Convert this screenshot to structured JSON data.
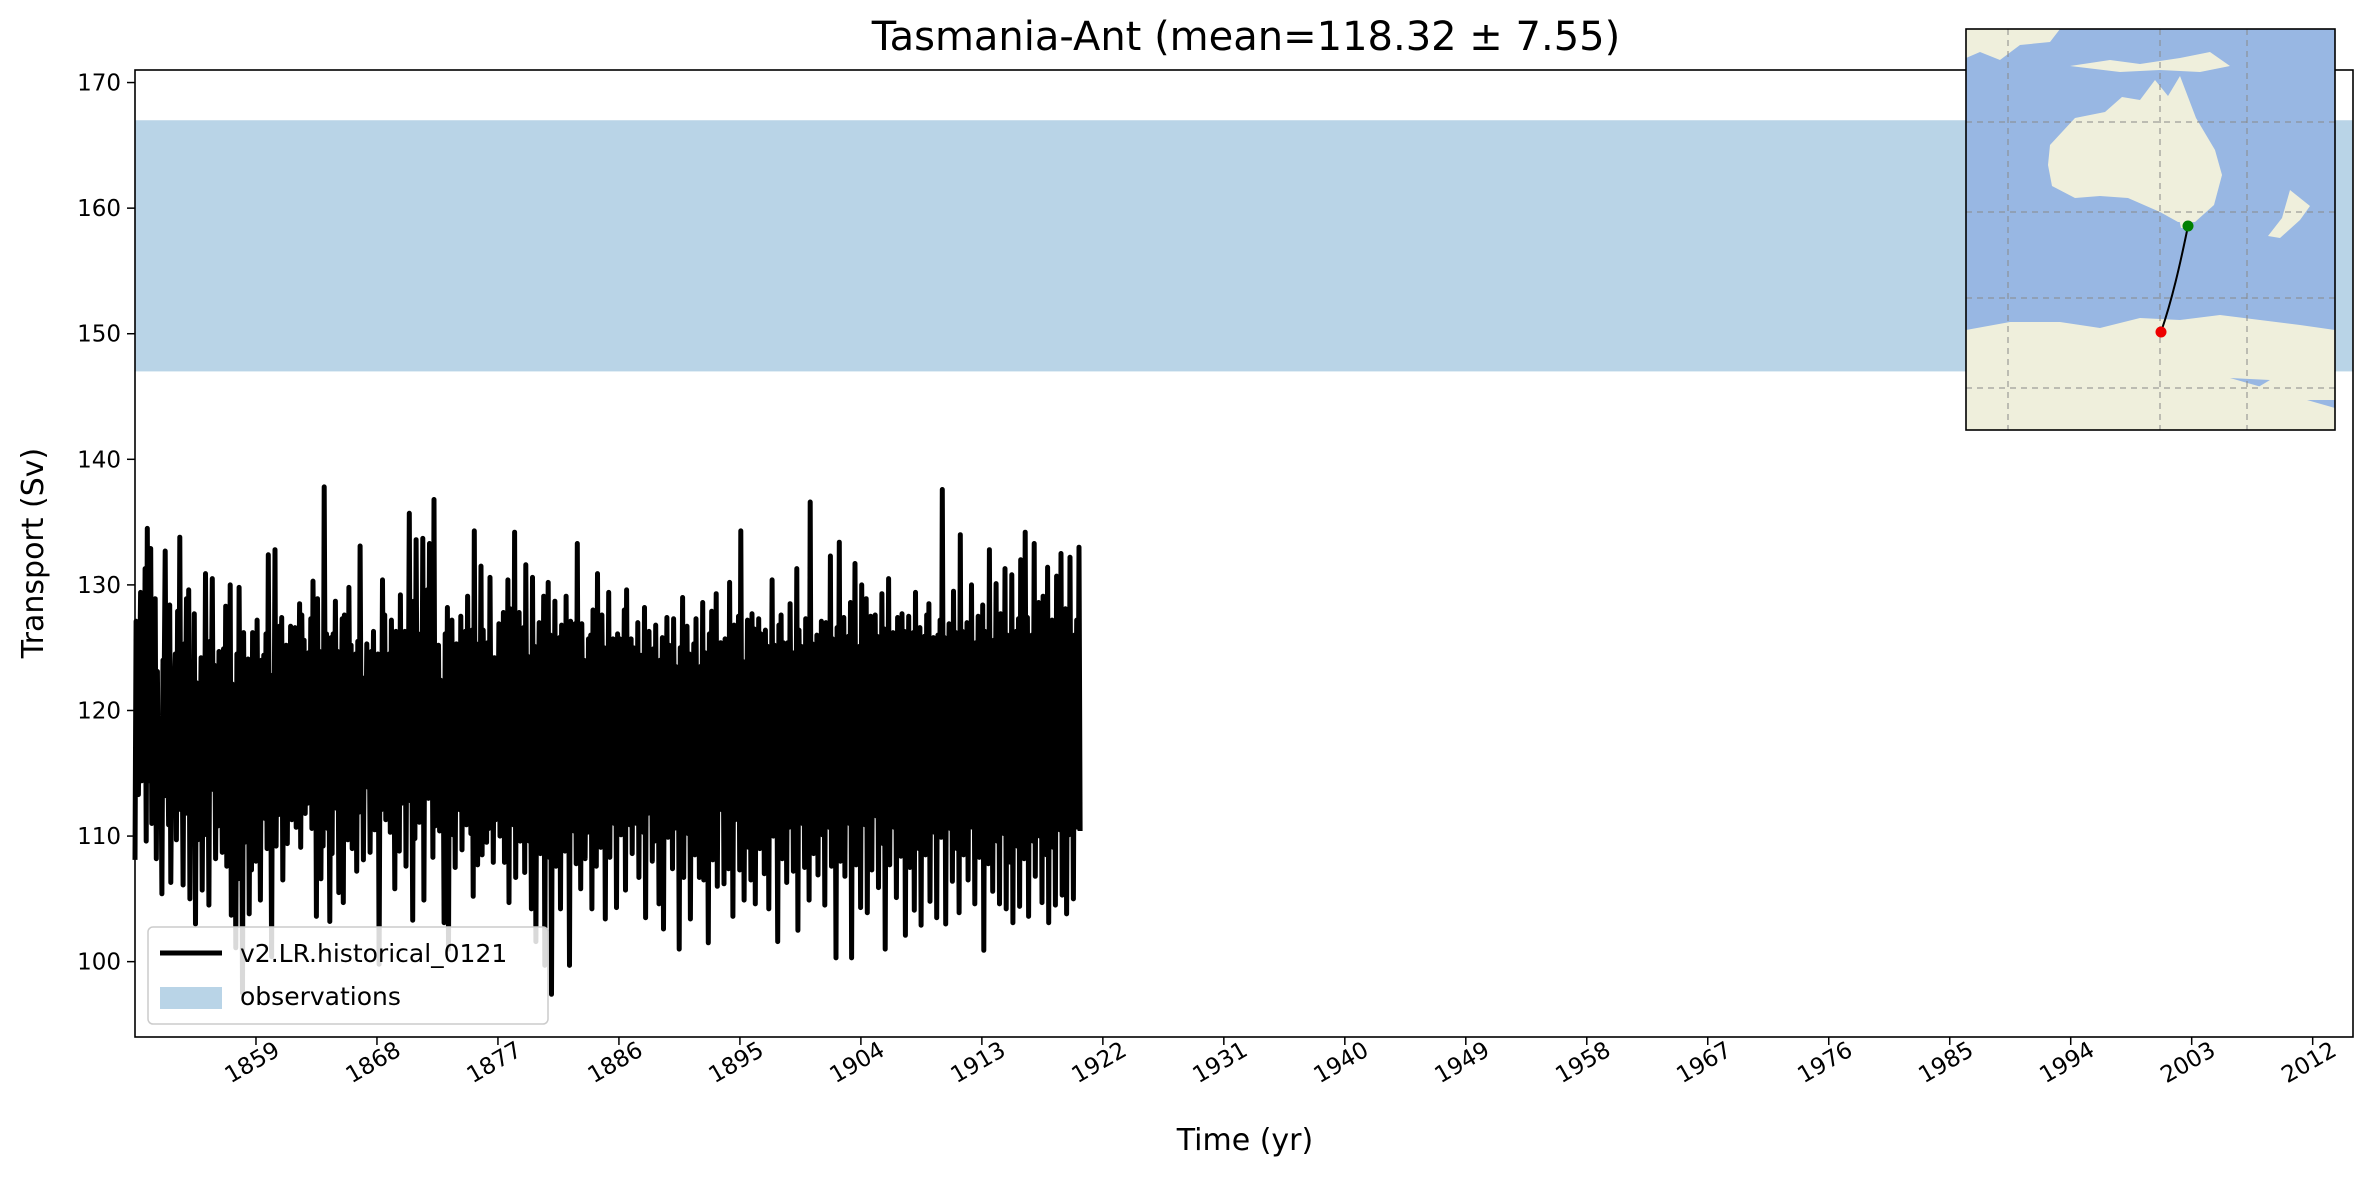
{
  "chart_data": {
    "type": "line",
    "title": "Tasmania-Ant (mean=118.32 ± 7.55)",
    "xlabel": "Time (yr)",
    "ylabel": "Transport (Sv)",
    "xlim": [
      1850,
      2015
    ],
    "ylim": [
      94,
      171
    ],
    "x_ticks": [
      "1859",
      "1868",
      "1877",
      "1886",
      "1895",
      "1904",
      "1913",
      "1922",
      "1931",
      "1940",
      "1949",
      "1958",
      "1967",
      "1976",
      "1985",
      "1994",
      "2003",
      "2012"
    ],
    "y_ticks": [
      "100",
      "110",
      "120",
      "130",
      "140",
      "150",
      "160",
      "170"
    ],
    "grid": false,
    "legend_position": "lower-left",
    "observation_band": {
      "name": "observations",
      "y_min": 147,
      "y_max": 167,
      "color": "#b9d4e7"
    },
    "series": [
      {
        "name": "v2.LR.historical_0121",
        "color": "#000000",
        "x_start": 1850,
        "x_step": 0.0833,
        "values": [
          108.1,
          127.1,
          124.9,
          113.3,
          121.8,
          129.4,
          114.4,
          119.5,
          116.4,
          131.3,
          109.6,
          134.5,
          114.4,
          122.0,
          132.9,
          111.0,
          121.1,
          117.8,
          128.9,
          108.2,
          123.1,
          112.0,
          116.4,
          119.1,
          105.4,
          124.0,
          121.4,
          132.7,
          113.2,
          120.6,
          110.9,
          128.4,
          106.3,
          119.7,
          115.1,
          121.3,
          124.5,
          109.7,
          127.9,
          114.4,
          133.8,
          112.1,
          118.8,
          106.1,
          125.3,
          119.4,
          128.9,
          111.8,
          129.6,
          105.0,
          120.7,
          116.1,
          115.1,
          127.7,
          103.0,
          122.2,
          109.7,
          121.6,
          114.8,
          124.2,
          105.7,
          120.6,
          112.0,
          130.9,
          110.1,
          121.1,
          104.5,
          125.5,
          117.2,
          130.5,
          113.7,
          123.6,
          108.2,
          122.1,
          110.8,
          124.7,
          118.3,
          121.3,
          108.7,
          124.9,
          111.9,
          128.3,
          107.6,
          121.1,
          112.4,
          130.0,
          103.7,
          122.1,
          115.2,
          119.2,
          101.1,
          124.5,
          106.6,
          129.8,
          112.4,
          120.1,
          97.5,
          126.2,
          109.5,
          120.6,
          114.4,
          124.1,
          103.8,
          122.0,
          107.3,
          126.2,
          116.3,
          119.4,
          108.0,
          127.2,
          112.6,
          117.7,
          104.9,
          124.0,
          119.8,
          124.4,
          111.4,
          126.1,
          109.0,
          132.4,
          113.6,
          119.2,
          100.4,
          122.8,
          112.6,
          132.8,
          109.2,
          123.4,
          111.7,
          126.7,
          121.3,
          127.4,
          106.5,
          120.3,
          114.7,
          125.2,
          109.4,
          122.9,
          113.6,
          126.7,
          111.3,
          123.1,
          120.4,
          126.6,
          110.7,
          121.3,
          117.4,
          128.5,
          109.1,
          127.6,
          115.5,
          125.6,
          111.8,
          121.2,
          112.6,
          124.6,
          114.8,
          127.3,
          110.6,
          130.3,
          118.3,
          127.1,
          103.6,
          128.9,
          112.4,
          124.7,
          106.6,
          123.0,
          109.2,
          137.8,
          116.3,
          126.1,
          110.6,
          120.6,
          103.2,
          125.8,
          108.6,
          126.1,
          116.5,
          128.7,
          112.2,
          124.7,
          105.5,
          121.8,
          117.2,
          127.3,
          104.7,
          127.6,
          118.8,
          124.6,
          109.7,
          129.8,
          116.2,
          125.2,
          109.0,
          121.7,
          113.2,
          124.5,
          107.2,
          125.5,
          111.9,
          133.1,
          115.4,
          122.6,
          108.1,
          120.7,
          116.2,
          125.3,
          113.9,
          122.3,
          108.7,
          124.7,
          117.6,
          126.3,
          110.5,
          122.9,
          114.1,
          124.5,
          99.8,
          121.5,
          112.1,
          130.4,
          115.8,
          127.6,
          111.3,
          123.5,
          112.9,
          124.5,
          110.3,
          127.2,
          117.4,
          121.4,
          105.8,
          126.3,
          118.1,
          124.9,
          108.8,
          129.2,
          112.6,
          121.3,
          115.2,
          126.3,
          107.6,
          122.6,
          118.2,
          135.7,
          112.8,
          121.0,
          103.3,
          128.7,
          109.8,
          133.6,
          117.3,
          126.1,
          111.1,
          123.5,
          114.4,
          133.7,
          104.9,
          126.0,
          117.4,
          129.6,
          113.0,
          133.3,
          113.6,
          126.1,
          108.3,
          136.8,
          110.8,
          123.3,
          118.7,
          125.2,
          110.4,
          122.4,
          115.6,
          121.8,
          103.1,
          126.1,
          112.8,
          128.2,
          101.0,
          125.9,
          114.4,
          127.2,
          110.1,
          123.2,
          107.5,
          125.3,
          116.2,
          119.3,
          112.1,
          127.5,
          108.9,
          124.6,
          113.6,
          126.3,
          110.9,
          129.1,
          115.3,
          122.8,
          110.2,
          126.4,
          105.2,
          134.3,
          112.6,
          125.3,
          107.7,
          120.9,
          116.4,
          131.5,
          108.5,
          126.4,
          114.5,
          122.9,
          109.5,
          125.4,
          110.6,
          130.6,
          116.0,
          123.4,
          107.9,
          124.2,
          111.3,
          122.8,
          115.7,
          126.9,
          110.0,
          124.9,
          114.3,
          127.8,
          107.9,
          124.0,
          112.7,
          130.4,
          104.7,
          128.1,
          113.5,
          124.4,
          110.9,
          134.2,
          106.7,
          124.1,
          115.1,
          127.8,
          109.6,
          123.5,
          111.8,
          126.6,
          107.1,
          131.6,
          114.2,
          124.3,
          109.6,
          121.1,
          104.2,
          130.6,
          112.5,
          125.1,
          101.6,
          122.7,
          117.4,
          127.0,
          108.6,
          120.6,
          114.3,
          129.1,
          99.7,
          125.6,
          116.7,
          130.2,
          108.3,
          126.0,
          97.4,
          124.0,
          111.6,
          128.7,
          107.6,
          125.0,
          116.3,
          125.8,
          104.2,
          126.8,
          113.2,
          121.4,
          108.8,
          129.1,
          113.3,
          122.7,
          99.7,
          127.1,
          114.1,
          123.7,
          110.4,
          126.9,
          107.8,
          133.3,
          112.5,
          126.2,
          105.8,
          126.9,
          116.3,
          124.0,
          108.2,
          121.5,
          110.3,
          125.7,
          116.8,
          126.0,
          104.2,
          128.0,
          113.9,
          126.5,
          107.6,
          130.9,
          111.6,
          121.6,
          109.1,
          127.6,
          114.6,
          125.0,
          103.4,
          123.1,
          112.8,
          129.4,
          108.3,
          125.4,
          115.3,
          125.7,
          111.0,
          124.6,
          104.3,
          126.1,
          117.2,
          125.7,
          110.1,
          122.4,
          115.1,
          128.0,
          105.7,
          129.6,
          114.3,
          123.0,
          110.9,
          125.7,
          108.6,
          125.0,
          117.6,
          123.0,
          111.0,
          127.0,
          106.7,
          124.4,
          113.2,
          124.4,
          110.3,
          128.2,
          103.5,
          124.2,
          111.8,
          126.3,
          114.5,
          123.2,
          108.0,
          124.9,
          109.6,
          126.8,
          113.5,
          123.2,
          104.6,
          124.0,
          116.1,
          125.8,
          102.6,
          122.7,
          114.3,
          127.4,
          109.9,
          125.2,
          111.7,
          124.3,
          107.4,
          127.3,
          116.0,
          123.5,
          110.6,
          122.7,
          101.0,
          125.0,
          114.7,
          129.0,
          106.7,
          124.3,
          112.1,
          126.7,
          110.2,
          124.5,
          103.4,
          121.4,
          116.2,
          125.3,
          108.5,
          127.3,
          112.5,
          122.7,
          106.7,
          123.5,
          114.4,
          128.6,
          106.5,
          124.6,
          111.0,
          120.6,
          101.5,
          126.1,
          113.6,
          127.9,
          108.1,
          126.7,
          111.4,
          129.3,
          106.0,
          123.2,
          114.7,
          125.4,
          112.1,
          122.0,
          106.2,
          125.7,
          114.3,
          124.0,
          107.4,
          130.2,
          113.0,
          124.5,
          103.6,
          126.8,
          111.3,
          122.0,
          115.7,
          127.5,
          107.3,
          134.3,
          112.8,
          123.9,
          104.9,
          122.9,
          116.3,
          127.2,
          109.1,
          125.0,
          106.5,
          127.7,
          111.9,
          126.5,
          104.6,
          124.5,
          115.8,
          127.3,
          109.0,
          126.1,
          111.3,
          124.2,
          107.0,
          126.4,
          114.2,
          125.1,
          104.2,
          123.7,
          113.4,
          130.4,
          110.0,
          125.2,
          116.4,
          121.7,
          101.6,
          126.8,
          111.8,
          127.6,
          108.2,
          125.4,
          114.7,
          121.8,
          106.3,
          125.4,
          110.7,
          128.5,
          115.9,
          123.2,
          107.2,
          124.6,
          112.4,
          131.3,
          102.5,
          126.4,
          114.6,
          125.1,
          111.0,
          123.9,
          107.5,
          127.3,
          113.1,
          124.9,
          104.9,
          136.6,
          111.4,
          125.3,
          108.6,
          122.7,
          115.7,
          126.0,
          106.9,
          124.9,
          112.2,
          127.1,
          110.1,
          125.6,
          104.5,
          127.0,
          113.3,
          124.2,
          110.7,
          132.3,
          107.6,
          125.7,
          115.3,
          124.3,
          100.3,
          126.6,
          112.2,
          133.4,
          108.0,
          124.9,
          111.8,
          127.4,
          106.8,
          122.8,
          115.4,
          125.9,
          111.0,
          128.6,
          100.3,
          127.3,
          113.3,
          131.7,
          107.7,
          124.6,
          110.6,
          125.1,
          104.3,
          130.0,
          115.2,
          125.6,
          110.9,
          128.9,
          103.9,
          125.7,
          116.6,
          127.5,
          107.3,
          124.1,
          112.7,
          127.6,
          111.6,
          125.9,
          105.9,
          125.2,
          114.3,
          129.3,
          109.4,
          126.5,
          101.0,
          124.4,
          112.1,
          130.5,
          107.7,
          123.9,
          115.1,
          126.2,
          110.7,
          124.9,
          105.1,
          127.4,
          113.2,
          125.1,
          108.4,
          127.7,
          110.3,
          126.3,
          102.1,
          125.7,
          114.9,
          127.5,
          107.5,
          124.7,
          111.5,
          126.2,
          104.1,
          129.4,
          112.6,
          124.2,
          109.0,
          126.6,
          102.9,
          125.0,
          114.2,
          125.9,
          108.5,
          127.6,
          111.2,
          128.5,
          104.8,
          125.1,
          113.7,
          125.8,
          110.3,
          124.6,
          103.5,
          126.0,
          114.5,
          127.2,
          109.9,
          137.6,
          113.2,
          125.8,
          103.0,
          124.1,
          116.8,
          126.9,
          110.6,
          124.7,
          106.4,
          129.5,
          113.4,
          126.2,
          109.0,
          123.9,
          103.9,
          134.0,
          111.9,
          126.3,
          108.5,
          124.3,
          115.1,
          127.0,
          106.5,
          125.8,
          112.4,
          130.0,
          110.7,
          124.1,
          104.6,
          125.4,
          115.0,
          127.5,
          108.3,
          125.9,
          110.9,
          128.4,
          100.9,
          126.3,
          113.7,
          125.4,
          107.8,
          132.8,
          111.6,
          124.0,
          105.6,
          125.6,
          115.7,
          130.1,
          109.6,
          125.1,
          104.6,
          127.7,
          112.4,
          124.4,
          110.2,
          131.3,
          104.2,
          126.0,
          115.5,
          125.3,
          107.9,
          130.8,
          103.1,
          125.8,
          112.8,
          126.3,
          109.2,
          127.3,
          104.4,
          132.0,
          114.0,
          125.1,
          108.2,
          134.2,
          111.4,
          127.4,
          103.6,
          125.7,
          115.5,
          126.0,
          109.6,
          133.3,
          106.8,
          124.6,
          113.7,
          128.6,
          110.0,
          126.2,
          104.7,
          129.1,
          114.9,
          125.2,
          108.5,
          131.4,
          103.1,
          126.3,
          111.6,
          127.2,
          109.1,
          125.6,
          104.5,
          130.7,
          113.4,
          124.4,
          110.5,
          132.5,
          105.3,
          126.2,
          115.3,
          128.1,
          103.8,
          127.0,
          110.1,
          132.2,
          113.1,
          125.4,
          105.0,
          126.0,
          115.6,
          127.2,
          110.7,
          133.0,
          110.4
        ]
      }
    ]
  },
  "inset_map": {
    "description_icon": "world-map-inset-icon",
    "ocean_color": "#98b7e3",
    "land_color": "#efefdc",
    "start_marker_color": "#008000",
    "end_marker_color": "#ee0000"
  }
}
